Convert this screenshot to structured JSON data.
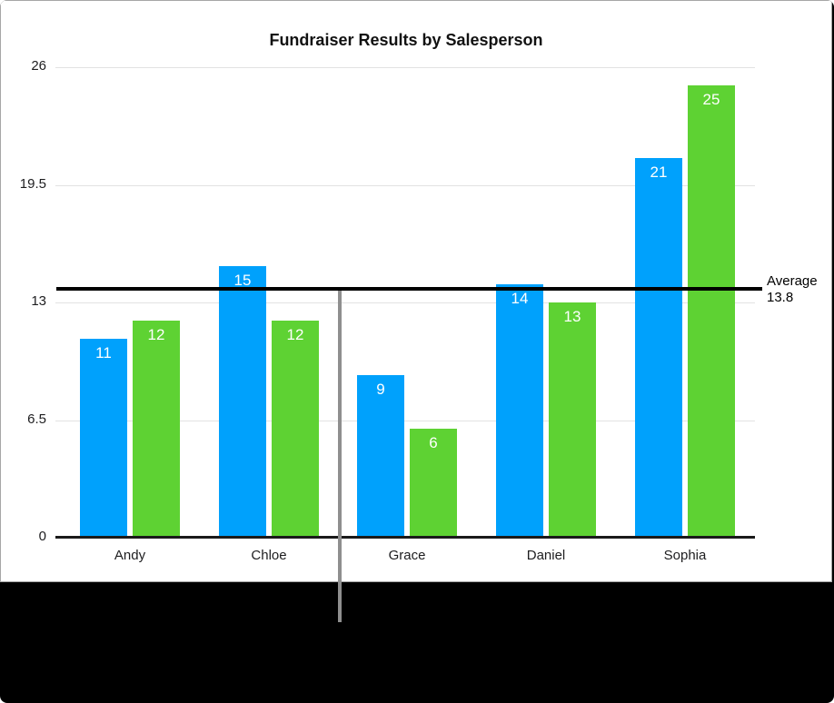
{
  "chart_data": {
    "type": "bar",
    "title": "Fundraiser Results by Salesperson",
    "categories": [
      "Andy",
      "Chloe",
      "Grace",
      "Daniel",
      "Sophia"
    ],
    "series": [
      {
        "name": "series-blue",
        "color": "#00a1fc",
        "values": [
          11,
          15,
          9,
          14,
          21
        ]
      },
      {
        "name": "series-green",
        "color": "#5ed233",
        "values": [
          12,
          12,
          6,
          13,
          25
        ]
      }
    ],
    "bar_value_labels": [
      [
        "11",
        "15",
        "9",
        "14",
        "21"
      ],
      [
        "12",
        "12",
        "6",
        "13",
        "25"
      ]
    ],
    "ylim": [
      0,
      26
    ],
    "yticks": [
      26,
      19.5,
      13,
      6.5,
      0
    ],
    "ytick_labels": [
      "26",
      "19.5",
      "13",
      "6.5",
      "0"
    ],
    "grid": true,
    "legend": "none",
    "average_line": {
      "value": 13.8,
      "label_line1": "Average",
      "label_line2": "13.8",
      "color": "#000000"
    }
  },
  "annotation": {
    "callout_line_color": "#8f8f8f"
  },
  "colors": {
    "panel_background": "#ffffff",
    "panel_border": "#a6a6a6",
    "letterbox_background": "#000000",
    "gridline": "#e2e2e2",
    "axis": "#1a1a1a",
    "tick_text": "#1d1d1f",
    "bar_value_text": "#ffffff"
  }
}
